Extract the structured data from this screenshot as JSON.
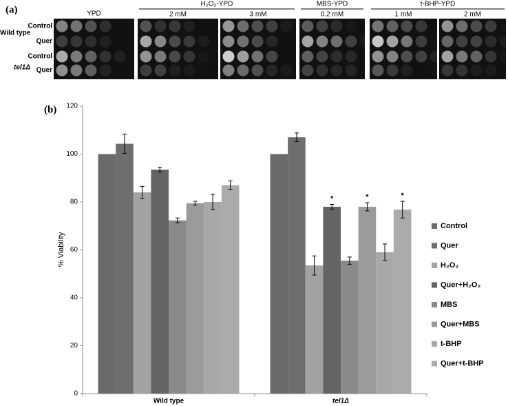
{
  "panel_a": {
    "label": "(a)",
    "groups": [
      {
        "name": "YPD",
        "columns": []
      },
      {
        "name": "H₂O₂-YPD",
        "columns": [
          "2 mM",
          "3 mM"
        ]
      },
      {
        "name": "MBS-YPD",
        "columns": [
          "0.2 mM"
        ]
      },
      {
        "name": "t-BHP-YPD",
        "columns": [
          "1 mM",
          "2 mM"
        ]
      }
    ],
    "strains": [
      {
        "name": "Wild type",
        "rows": [
          "Control",
          "Quer"
        ]
      },
      {
        "name": "tel1Δ",
        "rows": [
          "Control",
          "Quer"
        ]
      }
    ]
  },
  "chart_data": {
    "type": "bar",
    "label": "(b)",
    "y_label": "% Viability",
    "categories": [
      "Wild type",
      "tel1Δ"
    ],
    "series": [
      {
        "name": "Control",
        "color": "#6a6a6a",
        "values": [
          100,
          100
        ],
        "errors": [
          0,
          0
        ]
      },
      {
        "name": "Quer",
        "color": "#6e6e6e",
        "values": [
          104.3,
          107
        ],
        "errors": [
          4,
          1.8
        ]
      },
      {
        "name": "H₂O₂",
        "color": "#a2a2a2",
        "values": [
          84,
          53.5
        ],
        "errors": [
          2.5,
          4
        ]
      },
      {
        "name": "Quer+H₂O₂",
        "color": "#646464",
        "values": [
          93.5,
          78
        ],
        "errors": [
          1,
          1
        ]
      },
      {
        "name": "MBS",
        "color": "#8a8a8a",
        "values": [
          72.3,
          55.5
        ],
        "errors": [
          1,
          1.5
        ]
      },
      {
        "name": "Quer+MBS",
        "color": "#9b9b9b",
        "values": [
          79.5,
          78
        ],
        "errors": [
          0.8,
          1.7
        ]
      },
      {
        "name": "t-BHP",
        "color": "#a8a8a8",
        "values": [
          80,
          59
        ],
        "errors": [
          3.2,
          3.5
        ]
      },
      {
        "name": "Quer+t-BHP",
        "color": "#ababab",
        "values": [
          87,
          76.8
        ],
        "errors": [
          1.8,
          3.5
        ]
      }
    ],
    "annotations": [
      {
        "text": "*",
        "series": "Quer+H₂O₂",
        "category": "tel1Δ"
      },
      {
        "text": "*",
        "series": "Quer+MBS",
        "category": "tel1Δ"
      },
      {
        "text": "*",
        "series": "Quer+t-BHP",
        "category": "tel1Δ"
      }
    ],
    "ylim": [
      0,
      120
    ],
    "yticks": [
      0,
      20,
      40,
      60,
      80,
      100,
      120
    ]
  }
}
